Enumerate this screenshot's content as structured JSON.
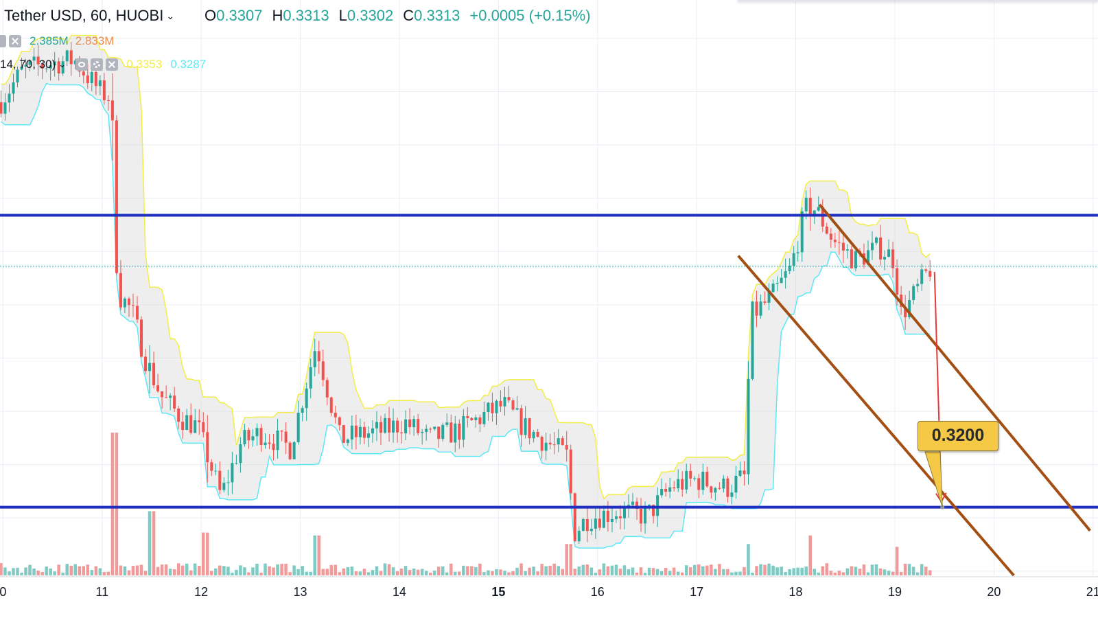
{
  "header": {
    "title": "Tether USD, 60, HUOBI",
    "ohlc": [
      {
        "label": "O",
        "value": "0.3307"
      },
      {
        "label": "H",
        "value": "0.3313"
      },
      {
        "label": "L",
        "value": "0.3302"
      },
      {
        "label": "C",
        "value": "0.3313"
      }
    ],
    "change": "+0.0005 (+0.15%)"
  },
  "volume_legend": {
    "v1": "2.385M",
    "v2": "2.833M"
  },
  "indicator_legend": {
    "params": "14, 70, 30)",
    "v1": "0.3353",
    "v2": "0.3287"
  },
  "annotation": {
    "target_label": "0.3200"
  },
  "colors": {
    "up": "#26a69a",
    "down": "#ef5350",
    "vol_up": "#7fcbc3",
    "vol_down": "#f19a9a",
    "upper_band": "#f2ee45",
    "lower_band": "#5de8f5",
    "level_line": "#1f2fc0",
    "channel": "#a34f14",
    "arrow": "#e53935",
    "target_fill": "#f5c945"
  },
  "chart_data": {
    "type": "candlestick",
    "x_ticks": [
      "0",
      "11",
      "12",
      "13",
      "14",
      "15",
      "16",
      "17",
      "18",
      "19",
      "20",
      "21"
    ],
    "x_range_days": [
      9.97,
      21.05
    ],
    "y_range": [
      0.3168,
      0.3438
    ],
    "horizontal_levels": [
      0.3337,
      0.32
    ],
    "last_close": 0.3313,
    "target": 0.32,
    "price_path": [
      [
        9.97,
        0.339
      ],
      [
        10.2,
        0.3405
      ],
      [
        10.45,
        0.3408
      ],
      [
        10.72,
        0.341
      ],
      [
        10.98,
        0.3395
      ],
      [
        11.1,
        0.3392
      ],
      [
        11.12,
        0.3332
      ],
      [
        11.17,
        0.33
      ],
      [
        11.3,
        0.3292
      ],
      [
        11.45,
        0.3268
      ],
      [
        11.6,
        0.3252
      ],
      [
        11.8,
        0.3242
      ],
      [
        11.96,
        0.3238
      ],
      [
        12.05,
        0.3226
      ],
      [
        12.2,
        0.3205
      ],
      [
        12.4,
        0.323
      ],
      [
        12.6,
        0.3235
      ],
      [
        12.9,
        0.3228
      ],
      [
        13.16,
        0.3277
      ],
      [
        13.4,
        0.3232
      ],
      [
        13.6,
        0.3234
      ],
      [
        13.85,
        0.3236
      ],
      [
        14.05,
        0.324
      ],
      [
        14.3,
        0.3232
      ],
      [
        14.6,
        0.3236
      ],
      [
        14.85,
        0.3243
      ],
      [
        15.05,
        0.3248
      ],
      [
        15.25,
        0.3238
      ],
      [
        15.5,
        0.323
      ],
      [
        15.7,
        0.3224
      ],
      [
        15.76,
        0.3188
      ],
      [
        15.9,
        0.3195
      ],
      [
        16.2,
        0.3198
      ],
      [
        16.5,
        0.3196
      ],
      [
        16.75,
        0.321
      ],
      [
        17.0,
        0.3213
      ],
      [
        17.3,
        0.3209
      ],
      [
        17.48,
        0.3214
      ],
      [
        17.55,
        0.329
      ],
      [
        17.75,
        0.3298
      ],
      [
        17.95,
        0.3312
      ],
      [
        18.1,
        0.334
      ],
      [
        18.2,
        0.334
      ],
      [
        18.38,
        0.3325
      ],
      [
        18.6,
        0.3316
      ],
      [
        18.85,
        0.3322
      ],
      [
        19.0,
        0.3316
      ],
      [
        19.05,
        0.329
      ],
      [
        19.15,
        0.3296
      ],
      [
        19.3,
        0.3308
      ],
      [
        19.37,
        0.3313
      ]
    ],
    "volume_spikes": [
      {
        "x": 11.12,
        "rel": 1.0
      },
      {
        "x": 11.5,
        "rel": 0.45
      },
      {
        "x": 12.05,
        "rel": 0.3
      },
      {
        "x": 13.16,
        "rel": 0.28
      },
      {
        "x": 15.7,
        "rel": 0.22
      },
      {
        "x": 17.52,
        "rel": 0.22
      },
      {
        "x": 18.15,
        "rel": 0.28
      },
      {
        "x": 19.03,
        "rel": 0.2
      }
    ]
  }
}
